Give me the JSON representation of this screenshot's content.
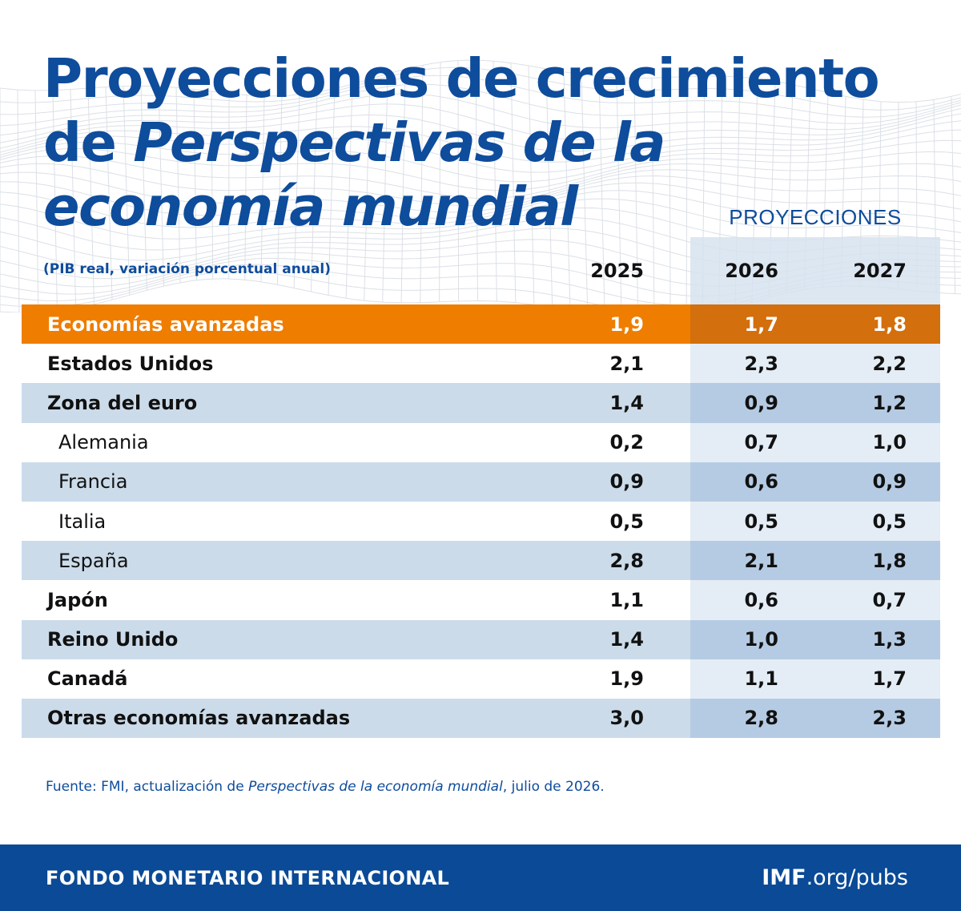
{
  "title": {
    "line1": "Proyecciones de crecimiento",
    "line2_prefix": "de ",
    "line2_italic": "Perspectivas de la",
    "line3_italic": "economía mundial"
  },
  "projections_label": "PROYECCIONES",
  "subtitle": "(PIB real, variación porcentual anual)",
  "colors": {
    "title_blue": "#0e4c9c",
    "highlight_orange": "#ef7d00",
    "row_blue": "#cbdbea",
    "footer_blue": "#0a4a96"
  },
  "chart_data": {
    "type": "table",
    "columns": [
      "2025",
      "2026",
      "2027"
    ],
    "rows": [
      {
        "label": "Economías avanzadas",
        "values": [
          "1,9",
          "1,7",
          "1,8"
        ],
        "highlight": true
      },
      {
        "label": "Estados Unidos",
        "values": [
          "2,1",
          "2,3",
          "2,2"
        ]
      },
      {
        "label": "Zona del euro",
        "values": [
          "1,4",
          "0,9",
          "1,2"
        ]
      },
      {
        "label": "Alemania",
        "values": [
          "0,2",
          "0,7",
          "1,0"
        ],
        "indent": true
      },
      {
        "label": "Francia",
        "values": [
          "0,9",
          "0,6",
          "0,9"
        ],
        "indent": true
      },
      {
        "label": "Italia",
        "values": [
          "0,5",
          "0,5",
          "0,5"
        ],
        "indent": true
      },
      {
        "label": "España",
        "values": [
          "2,8",
          "2,1",
          "1,8"
        ],
        "indent": true
      },
      {
        "label": "Japón",
        "values": [
          "1,1",
          "0,6",
          "0,7"
        ]
      },
      {
        "label": "Reino Unido",
        "values": [
          "1,4",
          "1,0",
          "1,3"
        ]
      },
      {
        "label": "Canadá",
        "values": [
          "1,9",
          "1,1",
          "1,7"
        ]
      },
      {
        "label": "Otras economías avanzadas",
        "values": [
          "3,0",
          "2,8",
          "2,3"
        ]
      }
    ]
  },
  "source": {
    "prefix": "Fuente: FMI, actualización de ",
    "italic": "Perspectivas de la economía mundial",
    "suffix": ", julio de 2026."
  },
  "footer": {
    "left": "FONDO MONETARIO INTERNACIONAL",
    "right_bold": "IMF",
    "right_normal": ".org/",
    "right_tail": "pubs"
  }
}
